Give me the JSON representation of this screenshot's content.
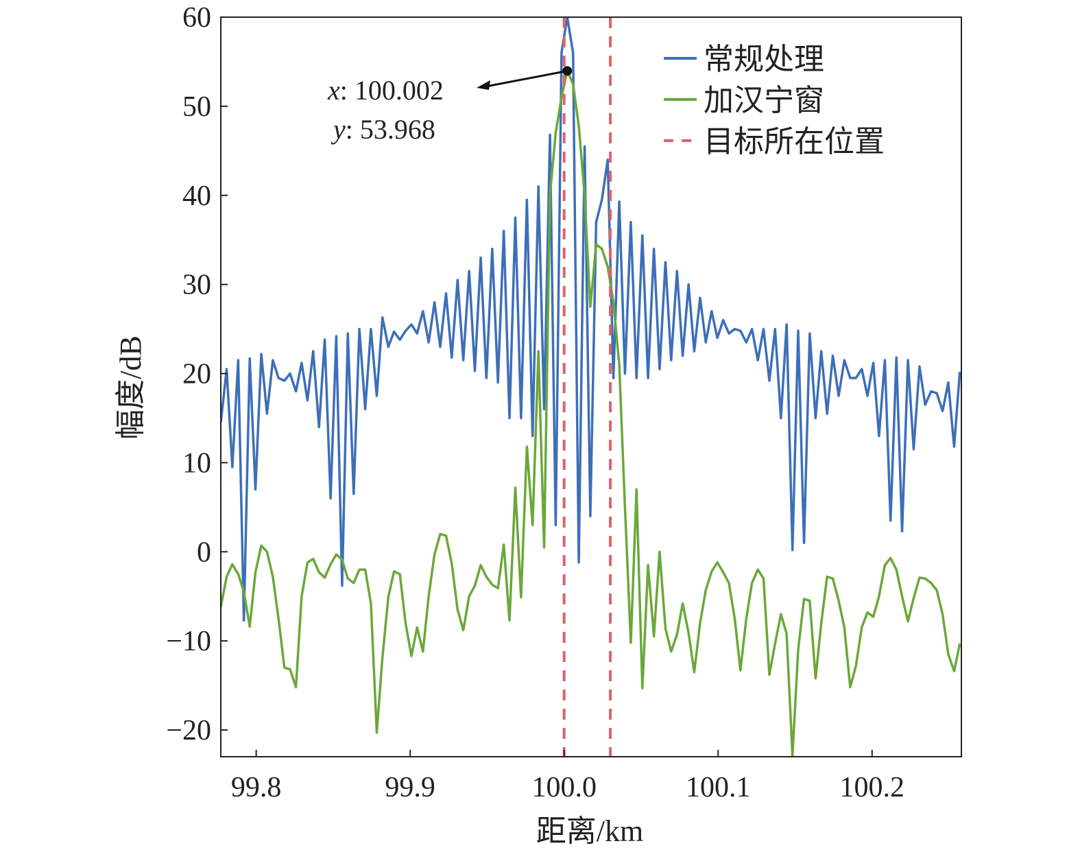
{
  "chart_data": {
    "type": "line",
    "xlabel": "距离/km",
    "ylabel": "幅度/dB",
    "xlim": [
      99.777,
      100.258
    ],
    "ylim": [
      -23,
      60
    ],
    "xticks": [
      99.8,
      99.9,
      {
        "value": 100.0,
        "label": "100.0"
      },
      100.1,
      100.2
    ],
    "yticks": [
      {
        "value": -20,
        "label": "−20"
      },
      {
        "value": -10,
        "label": "−10"
      },
      0,
      10,
      20,
      30,
      40,
      50,
      60
    ],
    "x": [
      99.777,
      99.7808,
      99.7845,
      99.7883,
      99.792,
      99.7958,
      99.7995,
      99.8033,
      99.807,
      99.8108,
      99.8145,
      99.8183,
      99.822,
      99.8258,
      99.8295,
      99.8333,
      99.837,
      99.8408,
      99.8445,
      99.8483,
      99.852,
      99.8558,
      99.8595,
      99.8633,
      99.867,
      99.8708,
      99.8745,
      99.8783,
      99.882,
      99.8858,
      99.8895,
      99.8933,
      99.897,
      99.9008,
      99.9045,
      99.9083,
      99.912,
      99.9158,
      99.9195,
      99.9233,
      99.927,
      99.9308,
      99.9345,
      99.9383,
      99.942,
      99.9458,
      99.9495,
      99.9533,
      99.957,
      99.9608,
      99.9645,
      99.9683,
      99.972,
      99.9758,
      99.9795,
      99.9833,
      99.987,
      99.9908,
      99.9945,
      99.9983,
      100.002,
      100.0058,
      100.0095,
      100.0133,
      100.017,
      100.0208,
      100.0245,
      100.0283,
      100.032,
      100.0358,
      100.0395,
      100.0433,
      100.047,
      100.0508,
      100.0545,
      100.0583,
      100.062,
      100.0658,
      100.0695,
      100.0733,
      100.077,
      100.0808,
      100.0845,
      100.0883,
      100.092,
      100.0958,
      100.0995,
      100.1033,
      100.107,
      100.1108,
      100.1145,
      100.1183,
      100.122,
      100.1258,
      100.1295,
      100.1333,
      100.137,
      100.1408,
      100.1445,
      100.1483,
      100.152,
      100.1558,
      100.1595,
      100.1633,
      100.167,
      100.1708,
      100.1745,
      100.1783,
      100.182,
      100.1858,
      100.1895,
      100.1933,
      100.197,
      100.2008,
      100.2045,
      100.2083,
      100.212,
      100.2158,
      100.2195,
      100.2233,
      100.227,
      100.2308,
      100.2345,
      100.2383,
      100.242,
      100.2458,
      100.2495,
      100.2533,
      100.257
    ],
    "series": [
      {
        "name": "常规处理",
        "color": "#3d6fb8",
        "values": [
          14.5,
          20.5,
          9.5,
          21.5,
          -7.7,
          21.7,
          7,
          22.2,
          15.5,
          21.5,
          19.5,
          19.2,
          20,
          18,
          21.2,
          17,
          22.5,
          14,
          23.8,
          6,
          24.2,
          -3.8,
          24.5,
          6.5,
          25,
          16,
          25,
          17.5,
          26.3,
          23,
          24.7,
          23.8,
          24.8,
          25.5,
          24.5,
          27,
          23.5,
          28,
          23,
          29,
          21.8,
          30.5,
          21.5,
          31.5,
          20.3,
          33,
          19.5,
          34,
          19,
          36,
          15,
          37.5,
          15,
          39.5,
          13,
          41,
          16,
          46.8,
          3,
          56,
          60,
          56,
          -1.2,
          45.5,
          4,
          37,
          39.5,
          44,
          19.5,
          39.3,
          20,
          37,
          19.5,
          35.5,
          19.5,
          34,
          20.5,
          32.5,
          21.5,
          31.5,
          22,
          30,
          22.5,
          28.5,
          23.5,
          27,
          24,
          26,
          24.5,
          25,
          24.8,
          23.5,
          25,
          21.5,
          25,
          19.2,
          25,
          15,
          25.5,
          0.2,
          24.8,
          1,
          24.5,
          15,
          22.5,
          15.5,
          22,
          17.5,
          21.5,
          19.5,
          19.5,
          20.5,
          17.5,
          21.2,
          13,
          21.5,
          3.5,
          21.8,
          2.3,
          21.5,
          11.5,
          20.8,
          16.5,
          18,
          17.8,
          15.8,
          19,
          11.8,
          20.2
        ]
      },
      {
        "name": "加汉宁窗",
        "color": "#6aa83a",
        "values": [
          -6.2,
          -2.8,
          -1.4,
          -2.5,
          -4.5,
          -8.4,
          -2.3,
          0.7,
          0,
          -2.8,
          -7.5,
          -13,
          -13.2,
          -15.2,
          -5,
          -1.2,
          -0.8,
          -2.3,
          -2.9,
          -1.4,
          -0.3,
          -0.9,
          -3,
          -3.5,
          -2,
          -2,
          -5.8,
          -20.3,
          -11.8,
          -5.1,
          -2.2,
          -2.5,
          -8,
          -11.7,
          -8.5,
          -11.2,
          -5,
          -0.3,
          2,
          1.8,
          -1.3,
          -6.5,
          -8.8,
          -5,
          -3.8,
          -1.5,
          -2.8,
          -3.7,
          -4.1,
          0.8,
          -7.7,
          7.2,
          -5.1,
          11.8,
          3,
          22.5,
          0.5,
          40,
          47,
          51,
          54,
          52.5,
          47.8,
          40,
          27.5,
          34.5,
          34,
          32,
          28,
          21,
          5,
          -10.2,
          7,
          -15.3,
          -1.5,
          -9.5,
          0,
          -8.6,
          -11.2,
          -9.3,
          -5.8,
          -9.1,
          -13.5,
          -8,
          -4.3,
          -2.2,
          -1.2,
          -2.3,
          -3.5,
          -7.5,
          -13.3,
          -7.5,
          -3.5,
          -2,
          -3,
          -13.8,
          -10.3,
          -7,
          -9.2,
          -22.9,
          -11,
          -5.3,
          -5.5,
          -14.2,
          -8,
          -2.8,
          -3,
          -5.5,
          -8.5,
          -15.2,
          -12.8,
          -8.5,
          -6.8,
          -7.3,
          -5,
          -1.5,
          -0.7,
          -2,
          -5,
          -7.8,
          -5.2,
          -2.9,
          -3,
          -3.5,
          -4.3,
          -7,
          -11.5,
          -13.4,
          -10.3
        ]
      }
    ],
    "reference": {
      "name": "目标所在位置",
      "color": "#e0626a",
      "x": [
        100.0,
        100.03
      ]
    },
    "annotation": {
      "point": [
        100.002,
        53.968
      ],
      "lines": [
        {
          "var": "x",
          "text": ": 100.002"
        },
        {
          "var": "y",
          "text": ": 53.968"
        }
      ]
    },
    "legend": "upper right"
  }
}
